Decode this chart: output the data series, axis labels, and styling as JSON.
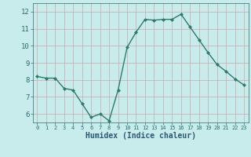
{
  "x": [
    0,
    1,
    2,
    3,
    4,
    5,
    6,
    7,
    8,
    9,
    10,
    11,
    12,
    13,
    14,
    15,
    16,
    17,
    18,
    19,
    20,
    21,
    22,
    23
  ],
  "y": [
    8.2,
    8.1,
    8.1,
    7.5,
    7.4,
    6.6,
    5.8,
    6.0,
    5.6,
    7.4,
    9.9,
    10.8,
    11.55,
    11.5,
    11.55,
    11.55,
    11.85,
    11.1,
    10.35,
    9.6,
    8.9,
    8.5,
    8.05,
    7.7
  ],
  "xlabel": "Humidex (Indice chaleur)",
  "ylim": [
    5.5,
    12.5
  ],
  "xlim": [
    -0.5,
    23.5
  ],
  "yticks": [
    6,
    7,
    8,
    9,
    10,
    11,
    12
  ],
  "xticks": [
    0,
    1,
    2,
    3,
    4,
    5,
    6,
    7,
    8,
    9,
    10,
    11,
    12,
    13,
    14,
    15,
    16,
    17,
    18,
    19,
    20,
    21,
    22,
    23
  ],
  "line_color": "#2d7b6b",
  "bg_color": "#c8ecec",
  "grid_color": "#c8a8a8",
  "tick_color": "#2d6e6e",
  "xlabel_color": "#2d5870",
  "marker": "D",
  "markersize": 2.0,
  "linewidth": 1.0
}
